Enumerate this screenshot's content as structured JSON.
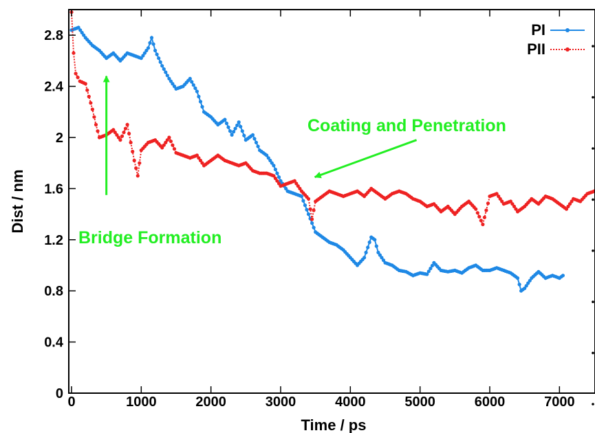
{
  "chart_data": {
    "type": "line",
    "title": "",
    "xlabel": "Time / ps",
    "ylabel": "Dist / nm",
    "xlim": [
      0,
      7500
    ],
    "ylim": [
      0,
      3.0
    ],
    "xticks": [
      0,
      1000,
      2000,
      3000,
      4000,
      5000,
      6000,
      7000
    ],
    "yticks": [
      0,
      0.4,
      0.8,
      1.2,
      1.6,
      2,
      2.4,
      2.8
    ],
    "xtick_labels": [
      "0",
      "1000",
      "2000",
      "3000",
      "4000",
      "5000",
      "6000",
      "7000"
    ],
    "ytick_labels": [
      "0",
      "0.4",
      "0.8",
      "1.2",
      "1.6",
      "2",
      "2.4",
      "2.8"
    ],
    "grid": false,
    "legend_position": "top-right",
    "series": [
      {
        "name": "PI",
        "color": "#1e88e5",
        "line_style": "solid",
        "marker": "circle",
        "points": [
          [
            0,
            2.84
          ],
          [
            100,
            2.86
          ],
          [
            200,
            2.78
          ],
          [
            300,
            2.72
          ],
          [
            400,
            2.68
          ],
          [
            500,
            2.62
          ],
          [
            600,
            2.66
          ],
          [
            700,
            2.6
          ],
          [
            800,
            2.66
          ],
          [
            900,
            2.64
          ],
          [
            1000,
            2.62
          ],
          [
            1100,
            2.7
          ],
          [
            1150,
            2.78
          ],
          [
            1200,
            2.68
          ],
          [
            1300,
            2.56
          ],
          [
            1400,
            2.46
          ],
          [
            1500,
            2.38
          ],
          [
            1600,
            2.4
          ],
          [
            1700,
            2.46
          ],
          [
            1800,
            2.36
          ],
          [
            1900,
            2.2
          ],
          [
            2000,
            2.16
          ],
          [
            2100,
            2.1
          ],
          [
            2200,
            2.14
          ],
          [
            2300,
            2.02
          ],
          [
            2400,
            2.12
          ],
          [
            2500,
            1.98
          ],
          [
            2600,
            2.02
          ],
          [
            2700,
            1.9
          ],
          [
            2800,
            1.86
          ],
          [
            2900,
            1.78
          ],
          [
            3000,
            1.66
          ],
          [
            3100,
            1.58
          ],
          [
            3200,
            1.56
          ],
          [
            3300,
            1.54
          ],
          [
            3400,
            1.4
          ],
          [
            3500,
            1.26
          ],
          [
            3600,
            1.22
          ],
          [
            3700,
            1.18
          ],
          [
            3800,
            1.16
          ],
          [
            3900,
            1.12
          ],
          [
            4000,
            1.06
          ],
          [
            4100,
            1.0
          ],
          [
            4200,
            1.06
          ],
          [
            4300,
            1.22
          ],
          [
            4350,
            1.2
          ],
          [
            4400,
            1.1
          ],
          [
            4500,
            1.02
          ],
          [
            4600,
            1.0
          ],
          [
            4700,
            0.96
          ],
          [
            4800,
            0.95
          ],
          [
            4900,
            0.92
          ],
          [
            5000,
            0.94
          ],
          [
            5100,
            0.93
          ],
          [
            5200,
            1.02
          ],
          [
            5300,
            0.96
          ],
          [
            5400,
            0.95
          ],
          [
            5500,
            0.96
          ],
          [
            5600,
            0.94
          ],
          [
            5700,
            0.98
          ],
          [
            5800,
            1.0
          ],
          [
            5900,
            0.96
          ],
          [
            6000,
            0.96
          ],
          [
            6100,
            0.98
          ],
          [
            6200,
            0.96
          ],
          [
            6300,
            0.94
          ],
          [
            6400,
            0.9
          ],
          [
            6450,
            0.8
          ],
          [
            6500,
            0.82
          ],
          [
            6600,
            0.9
          ],
          [
            6700,
            0.95
          ],
          [
            6800,
            0.9
          ],
          [
            6900,
            0.92
          ],
          [
            7000,
            0.9
          ],
          [
            7050,
            0.92
          ]
        ]
      },
      {
        "name": "PII",
        "color": "#ee2222",
        "line_style": "dotted",
        "marker": "circle",
        "points": [
          [
            0,
            2.98
          ],
          [
            30,
            2.66
          ],
          [
            60,
            2.5
          ],
          [
            120,
            2.44
          ],
          [
            200,
            2.42
          ],
          [
            300,
            2.22
          ],
          [
            350,
            2.1
          ],
          [
            400,
            2.0
          ],
          [
            500,
            2.02
          ],
          [
            600,
            2.06
          ],
          [
            700,
            1.98
          ],
          [
            800,
            2.1
          ],
          [
            850,
            1.96
          ],
          [
            900,
            1.82
          ],
          [
            950,
            1.7
          ],
          [
            1000,
            1.9
          ],
          [
            1100,
            1.96
          ],
          [
            1200,
            1.98
          ],
          [
            1300,
            1.92
          ],
          [
            1400,
            2.0
          ],
          [
            1500,
            1.88
          ],
          [
            1600,
            1.86
          ],
          [
            1700,
            1.84
          ],
          [
            1800,
            1.86
          ],
          [
            1900,
            1.78
          ],
          [
            2000,
            1.82
          ],
          [
            2100,
            1.86
          ],
          [
            2200,
            1.82
          ],
          [
            2300,
            1.8
          ],
          [
            2400,
            1.78
          ],
          [
            2500,
            1.8
          ],
          [
            2600,
            1.74
          ],
          [
            2700,
            1.72
          ],
          [
            2800,
            1.72
          ],
          [
            2900,
            1.7
          ],
          [
            3000,
            1.62
          ],
          [
            3100,
            1.64
          ],
          [
            3200,
            1.66
          ],
          [
            3300,
            1.58
          ],
          [
            3400,
            1.52
          ],
          [
            3450,
            1.36
          ],
          [
            3500,
            1.5
          ],
          [
            3600,
            1.54
          ],
          [
            3700,
            1.58
          ],
          [
            3800,
            1.56
          ],
          [
            3900,
            1.54
          ],
          [
            4000,
            1.56
          ],
          [
            4100,
            1.58
          ],
          [
            4200,
            1.54
          ],
          [
            4300,
            1.6
          ],
          [
            4400,
            1.56
          ],
          [
            4500,
            1.52
          ],
          [
            4600,
            1.56
          ],
          [
            4700,
            1.58
          ],
          [
            4800,
            1.56
          ],
          [
            4900,
            1.52
          ],
          [
            5000,
            1.5
          ],
          [
            5100,
            1.46
          ],
          [
            5200,
            1.48
          ],
          [
            5300,
            1.42
          ],
          [
            5400,
            1.46
          ],
          [
            5500,
            1.4
          ],
          [
            5600,
            1.46
          ],
          [
            5700,
            1.5
          ],
          [
            5800,
            1.44
          ],
          [
            5900,
            1.32
          ],
          [
            6000,
            1.54
          ],
          [
            6100,
            1.56
          ],
          [
            6200,
            1.48
          ],
          [
            6300,
            1.5
          ],
          [
            6400,
            1.42
          ],
          [
            6500,
            1.46
          ],
          [
            6600,
            1.52
          ],
          [
            6700,
            1.48
          ],
          [
            6800,
            1.54
          ],
          [
            6900,
            1.52
          ],
          [
            7000,
            1.48
          ],
          [
            7100,
            1.44
          ],
          [
            7200,
            1.52
          ],
          [
            7300,
            1.5
          ],
          [
            7400,
            1.56
          ],
          [
            7500,
            1.58
          ]
        ]
      }
    ],
    "annotations": [
      {
        "text": "Bridge Formation",
        "color": "#22ee22",
        "arrow_from": [
          500,
          1.55
        ],
        "arrow_to": [
          500,
          2.48
        ]
      },
      {
        "text": "Coating and Penetration",
        "color": "#22ee22",
        "arrow_from": [
          4950,
          1.98
        ],
        "arrow_to": [
          3490,
          1.69
        ]
      }
    ]
  }
}
